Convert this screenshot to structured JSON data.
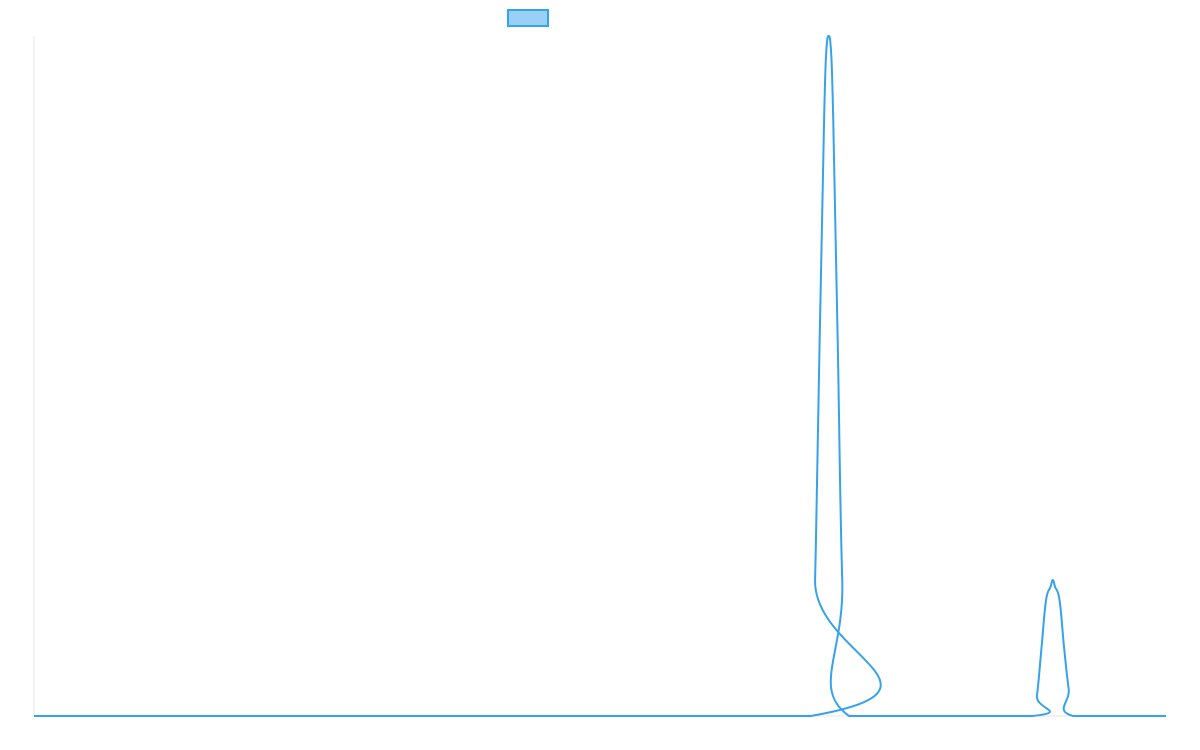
{
  "chart_data": {
    "type": "line",
    "title": "",
    "xlabel": "",
    "ylabel": "",
    "grid": false,
    "legend": {
      "position": "top-center",
      "entries": [
        {
          "label": "",
          "color": "#36a2eb",
          "fill": "#9ad0f5"
        }
      ]
    },
    "xlim": [
      0,
      1
    ],
    "ylim": [
      0,
      1
    ],
    "series": [
      {
        "color": "#36a2eb",
        "x": [
          0.0,
          0.686,
          0.69,
          0.694,
          0.698,
          0.7,
          0.702,
          0.704,
          0.706,
          0.71,
          0.714,
          0.72,
          0.882,
          0.886,
          0.89,
          0.894,
          0.898,
          0.9,
          0.902,
          0.906,
          0.91,
          0.914,
          0.918,
          1.0
        ],
        "y": [
          0.0,
          0.0,
          0.2,
          0.55,
          0.88,
          0.98,
          1.0,
          0.98,
          0.88,
          0.55,
          0.2,
          0.0,
          0.0,
          0.03,
          0.1,
          0.17,
          0.19,
          0.2,
          0.19,
          0.17,
          0.1,
          0.04,
          0.0,
          0.0
        ]
      }
    ]
  }
}
